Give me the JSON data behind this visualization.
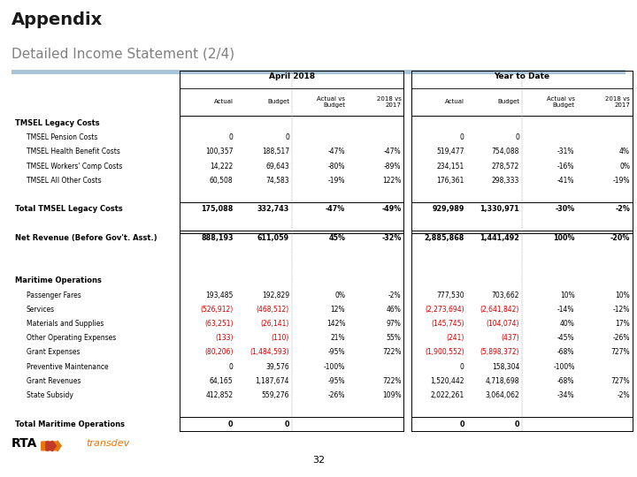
{
  "title": "Appendix",
  "subtitle": "Detailed Income Statement (2/4)",
  "page_number": "32",
  "april_header": "April 2018",
  "ytd_header": "Year to Date",
  "rows": [
    {
      "label": "TMSEL Legacy Costs",
      "indent": 0,
      "bold": true,
      "section_header": true,
      "values": [
        "",
        "",
        "",
        "",
        "",
        "",
        "",
        ""
      ]
    },
    {
      "label": "TMSEL Pension Costs",
      "indent": 1,
      "bold": false,
      "values": [
        "0",
        "0",
        "",
        "",
        "0",
        "0",
        "",
        ""
      ]
    },
    {
      "label": "TMSEL Health Benefit Costs",
      "indent": 1,
      "bold": false,
      "values": [
        "100,357",
        "188,517",
        "-47%",
        "-47%",
        "519,477",
        "754,088",
        "-31%",
        "4%"
      ]
    },
    {
      "label": "TMSEL Workers' Comp Costs",
      "indent": 1,
      "bold": false,
      "values": [
        "14,222",
        "69,643",
        "-80%",
        "-89%",
        "234,151",
        "278,572",
        "-16%",
        "0%"
      ]
    },
    {
      "label": "TMSEL All Other Costs",
      "indent": 1,
      "bold": false,
      "values": [
        "60,508",
        "74,583",
        "-19%",
        "122%",
        "176,361",
        "298,333",
        "-41%",
        "-19%"
      ]
    },
    {
      "label": "",
      "spacer": true,
      "values": [
        "",
        "",
        "",
        "",
        "",
        "",
        "",
        ""
      ]
    },
    {
      "label": "Total TMSEL Legacy Costs",
      "indent": 0,
      "bold": true,
      "topline": true,
      "values": [
        "175,088",
        "332,743",
        "-47%",
        "-49%",
        "929,989",
        "1,330,971",
        "-30%",
        "-2%"
      ]
    },
    {
      "label": "",
      "spacer": true,
      "values": [
        "",
        "",
        "",
        "",
        "",
        "",
        "",
        ""
      ]
    },
    {
      "label": "Net Revenue (Before Gov't. Asst.)",
      "indent": 0,
      "bold": true,
      "topline": true,
      "double_topline": true,
      "values": [
        "888,193",
        "611,059",
        "45%",
        "-32%",
        "2,885,868",
        "1,441,492",
        "100%",
        "-20%"
      ]
    },
    {
      "label": "",
      "spacer": true,
      "values": [
        "",
        "",
        "",
        "",
        "",
        "",
        "",
        ""
      ]
    },
    {
      "label": "",
      "spacer": true,
      "values": [
        "",
        "",
        "",
        "",
        "",
        "",
        "",
        ""
      ]
    },
    {
      "label": "Maritime Operations",
      "indent": 0,
      "bold": true,
      "section_header": true,
      "values": [
        "",
        "",
        "",
        "",
        "",
        "",
        "",
        ""
      ]
    },
    {
      "label": "Passenger Fares",
      "indent": 1,
      "bold": false,
      "values": [
        "193,485",
        "192,829",
        "0%",
        "-2%",
        "777,530",
        "703,662",
        "10%",
        "10%"
      ]
    },
    {
      "label": "Services",
      "indent": 1,
      "bold": false,
      "values": [
        "(526,912)",
        "(468,512)",
        "12%",
        "46%",
        "(2,273,694)",
        "(2,641,842)",
        "-14%",
        "-12%"
      ],
      "red_cols": [
        0,
        1,
        4,
        5
      ]
    },
    {
      "label": "Materials and Supplies",
      "indent": 1,
      "bold": false,
      "values": [
        "(63,251)",
        "(26,141)",
        "142%",
        "97%",
        "(145,745)",
        "(104,074)",
        "40%",
        "17%"
      ],
      "red_cols": [
        0,
        1,
        4,
        5
      ]
    },
    {
      "label": "Other Operating Expenses",
      "indent": 1,
      "bold": false,
      "values": [
        "(133)",
        "(110)",
        "21%",
        "55%",
        "(241)",
        "(437)",
        "-45%",
        "-26%"
      ],
      "red_cols": [
        0,
        1,
        4,
        5
      ]
    },
    {
      "label": "Grant Expenses",
      "indent": 1,
      "bold": false,
      "values": [
        "(80,206)",
        "(1,484,593)",
        "-95%",
        "722%",
        "(1,900,552)",
        "(5,898,372)",
        "-68%",
        "727%"
      ],
      "red_cols": [
        0,
        1,
        4,
        5
      ]
    },
    {
      "label": "Preventive Maintenance",
      "indent": 1,
      "bold": false,
      "values": [
        "0",
        "39,576",
        "-100%",
        "",
        "0",
        "158,304",
        "-100%",
        ""
      ]
    },
    {
      "label": "Grant Revenues",
      "indent": 1,
      "bold": false,
      "values": [
        "64,165",
        "1,187,674",
        "-95%",
        "722%",
        "1,520,442",
        "4,718,698",
        "-68%",
        "727%"
      ]
    },
    {
      "label": "State Subsidy",
      "indent": 1,
      "bold": false,
      "values": [
        "412,852",
        "559,276",
        "-26%",
        "109%",
        "2,022,261",
        "3,064,062",
        "-34%",
        "-2%"
      ]
    },
    {
      "label": "",
      "spacer": true,
      "values": [
        "",
        "",
        "",
        "",
        "",
        "",
        "",
        ""
      ]
    },
    {
      "label": "Total Maritime Operations",
      "indent": 0,
      "bold": true,
      "topline": true,
      "values": [
        "0",
        "0",
        "",
        "",
        "0",
        "0",
        "",
        ""
      ]
    }
  ],
  "bg_color": "#ffffff",
  "red_color": "#cc0000",
  "subtitle_color": "#808080",
  "divider_color": "#a8c4d8"
}
